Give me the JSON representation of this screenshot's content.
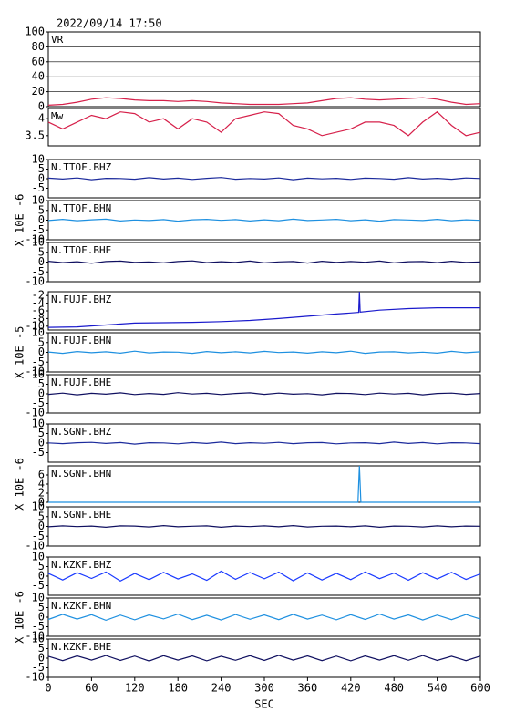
{
  "chart_data": [
    {
      "type": "line",
      "title": "2022/09/14 17:50",
      "label": "VR",
      "xlim": [
        0,
        600
      ],
      "ylim": [
        0,
        100
      ],
      "yticks": [
        0,
        20,
        40,
        60,
        80,
        100
      ],
      "grid": true,
      "x": [
        0,
        20,
        40,
        60,
        80,
        100,
        120,
        140,
        160,
        180,
        200,
        220,
        240,
        260,
        280,
        300,
        320,
        340,
        360,
        380,
        400,
        420,
        440,
        460,
        480,
        500,
        520,
        540,
        560,
        580,
        600
      ],
      "series": [
        {
          "color": "#d6204a",
          "values": [
            2,
            3,
            6,
            10,
            12,
            11,
            9,
            8,
            8,
            7,
            8,
            7,
            5,
            4,
            3,
            3,
            3,
            4,
            5,
            8,
            11,
            12,
            10,
            9,
            10,
            11,
            12,
            10,
            6,
            3,
            4
          ]
        }
      ]
    },
    {
      "type": "line",
      "label": "Mw",
      "xlim": [
        0,
        600
      ],
      "ylim": [
        3.2,
        4.3
      ],
      "yticks": [
        3.5,
        4.0
      ],
      "x": [
        0,
        20,
        40,
        60,
        80,
        100,
        120,
        140,
        160,
        180,
        200,
        220,
        240,
        260,
        280,
        300,
        320,
        340,
        360,
        380,
        400,
        420,
        440,
        460,
        480,
        500,
        520,
        540,
        560,
        580,
        600
      ],
      "series": [
        {
          "color": "#d6204a",
          "values": [
            3.9,
            3.7,
            3.9,
            4.1,
            4.0,
            4.2,
            4.15,
            3.9,
            4.0,
            3.7,
            4.0,
            3.9,
            3.6,
            4.0,
            4.1,
            4.2,
            4.15,
            3.8,
            3.7,
            3.5,
            3.6,
            3.7,
            3.9,
            3.9,
            3.8,
            3.5,
            3.9,
            4.2,
            3.8,
            3.5,
            3.6
          ]
        }
      ]
    },
    {
      "type": "line",
      "label": "N.TTOF.BHZ",
      "xlim": [
        0,
        600
      ],
      "ylim": [
        -10,
        10
      ],
      "yticks": [
        -5,
        0,
        5,
        10
      ],
      "x": [
        0,
        20,
        40,
        60,
        80,
        100,
        120,
        140,
        160,
        180,
        200,
        220,
        240,
        260,
        280,
        300,
        320,
        340,
        360,
        380,
        400,
        420,
        440,
        460,
        480,
        500,
        520,
        540,
        560,
        580,
        600
      ],
      "series": [
        {
          "color": "#1c2b9c",
          "values": [
            0.3,
            -0.2,
            0.4,
            -0.5,
            0.2,
            0.1,
            -0.3,
            0.5,
            -0.2,
            0.3,
            -0.4,
            0.2,
            0.6,
            -0.3,
            0.1,
            -0.2,
            0.4,
            -0.5,
            0.3,
            -0.1,
            0.2,
            -0.4,
            0.3,
            0.1,
            -0.3,
            0.5,
            -0.2,
            0.2,
            -0.3,
            0.4,
            0.1
          ]
        }
      ]
    },
    {
      "type": "line",
      "label": "N.TTOF.BHN",
      "ylabel": "X 10E -6",
      "xlim": [
        0,
        600
      ],
      "ylim": [
        -10,
        10
      ],
      "yticks": [
        -10,
        -5,
        0,
        5,
        10
      ],
      "x": [
        0,
        20,
        40,
        60,
        80,
        100,
        120,
        140,
        160,
        180,
        200,
        220,
        240,
        260,
        280,
        300,
        320,
        340,
        360,
        380,
        400,
        420,
        440,
        460,
        480,
        500,
        520,
        540,
        560,
        580,
        600
      ],
      "series": [
        {
          "color": "#1e90e0",
          "values": [
            -0.2,
            0.4,
            -0.3,
            0.2,
            0.5,
            -0.4,
            0.1,
            -0.2,
            0.3,
            -0.5,
            0.2,
            0.4,
            -0.1,
            0.3,
            -0.4,
            0.2,
            -0.3,
            0.5,
            -0.2,
            0.1,
            0.4,
            -0.3,
            0.2,
            -0.5,
            0.3,
            0.1,
            -0.2,
            0.4,
            -0.3,
            0.2,
            -0.1
          ]
        }
      ]
    },
    {
      "type": "line",
      "label": "N.TTOF.BHE",
      "xlim": [
        0,
        600
      ],
      "ylim": [
        -10,
        10
      ],
      "yticks": [
        -10,
        -5,
        0,
        5,
        10
      ],
      "x": [
        0,
        20,
        40,
        60,
        80,
        100,
        120,
        140,
        160,
        180,
        200,
        220,
        240,
        260,
        280,
        300,
        320,
        340,
        360,
        380,
        400,
        420,
        440,
        460,
        480,
        500,
        520,
        540,
        560,
        580,
        600
      ],
      "series": [
        {
          "color": "#101060",
          "values": [
            0.4,
            -0.3,
            0.2,
            -0.6,
            0.3,
            0.5,
            -0.2,
            0.1,
            -0.4,
            0.3,
            0.6,
            -0.3,
            0.2,
            -0.2,
            0.5,
            -0.4,
            0.1,
            0.3,
            -0.5,
            0.4,
            -0.2,
            0.3,
            -0.1,
            0.5,
            -0.4,
            0.2,
            0.3,
            -0.3,
            0.4,
            -0.2,
            0.1
          ]
        }
      ]
    },
    {
      "type": "line",
      "label": "N.FUJF.BHZ",
      "xlim": [
        0,
        600
      ],
      "ylim": [
        -11,
        -1
      ],
      "yticks": [
        -10,
        -8,
        -6,
        -4,
        -2
      ],
      "x": [
        0,
        40,
        80,
        120,
        160,
        200,
        240,
        280,
        320,
        360,
        400,
        430,
        431,
        432,
        433,
        460,
        500,
        540,
        600
      ],
      "series": [
        {
          "color": "#1a1acc",
          "values": [
            -10.3,
            -10.2,
            -9.7,
            -9.2,
            -9.1,
            -9.0,
            -8.8,
            -8.5,
            -8.0,
            -7.4,
            -6.8,
            -6.4,
            -6.4,
            -1,
            -6.3,
            -5.8,
            -5.4,
            -5.2,
            -5.2
          ]
        }
      ]
    },
    {
      "type": "line",
      "label": "N.FUJF.BHN",
      "ylabel": "X 10E -5",
      "xlim": [
        0,
        600
      ],
      "ylim": [
        -10,
        10
      ],
      "yticks": [
        -10,
        -5,
        0,
        5,
        10
      ],
      "x": [
        0,
        20,
        40,
        60,
        80,
        100,
        120,
        140,
        160,
        180,
        200,
        220,
        240,
        260,
        280,
        300,
        320,
        340,
        360,
        380,
        400,
        420,
        440,
        460,
        480,
        500,
        520,
        540,
        560,
        580,
        600
      ],
      "series": [
        {
          "color": "#1e90e0",
          "values": [
            0.2,
            -0.5,
            0.4,
            -0.2,
            0.3,
            -0.4,
            0.6,
            -0.3,
            0.2,
            0.1,
            -0.5,
            0.4,
            -0.2,
            0.3,
            -0.3,
            0.5,
            -0.1,
            0.2,
            -0.4,
            0.3,
            -0.2,
            0.6,
            -0.5,
            0.2,
            0.3,
            -0.3,
            0.1,
            -0.4,
            0.5,
            -0.2,
            0.3
          ]
        }
      ]
    },
    {
      "type": "line",
      "label": "N.FUJF.BHE",
      "xlim": [
        0,
        600
      ],
      "ylim": [
        -10,
        10
      ],
      "yticks": [
        -10,
        -5,
        0,
        5,
        10
      ],
      "x": [
        0,
        20,
        40,
        60,
        80,
        100,
        120,
        140,
        160,
        180,
        200,
        220,
        240,
        260,
        280,
        300,
        320,
        340,
        360,
        380,
        400,
        420,
        440,
        460,
        480,
        500,
        520,
        540,
        560,
        580,
        600
      ],
      "series": [
        {
          "color": "#101060",
          "values": [
            -0.3,
            0.4,
            -0.5,
            0.3,
            -0.2,
            0.5,
            -0.4,
            0.2,
            -0.3,
            0.6,
            -0.1,
            0.3,
            -0.4,
            0.2,
            0.5,
            -0.3,
            0.4,
            -0.2,
            0.1,
            -0.5,
            0.3,
            0.2,
            -0.4,
            0.4,
            -0.1,
            0.3,
            -0.5,
            0.2,
            0.4,
            -0.3,
            0.2
          ]
        }
      ]
    },
    {
      "type": "line",
      "label": "N.SGNF.BHZ",
      "xlim": [
        0,
        600
      ],
      "ylim": [
        -10,
        10
      ],
      "yticks": [
        -5,
        0,
        5,
        10
      ],
      "x": [
        0,
        20,
        40,
        60,
        80,
        100,
        120,
        140,
        160,
        180,
        200,
        220,
        240,
        260,
        280,
        300,
        320,
        340,
        360,
        380,
        400,
        420,
        440,
        460,
        480,
        500,
        520,
        540,
        560,
        580,
        600
      ],
      "series": [
        {
          "color": "#1c2b9c",
          "values": [
            0.1,
            -0.3,
            0.2,
            0.4,
            -0.2,
            0.3,
            -0.5,
            0.2,
            0.1,
            -0.4,
            0.3,
            -0.2,
            0.5,
            -0.3,
            0.2,
            -0.1,
            0.4,
            -0.3,
            0.2,
            0.3,
            -0.4,
            0.1,
            0.2,
            -0.3,
            0.5,
            -0.2,
            0.3,
            -0.4,
            0.2,
            0.1,
            -0.3
          ]
        }
      ]
    },
    {
      "type": "line",
      "label": "N.SGNF.BHN",
      "ylabel": "X 10E -6",
      "xlim": [
        0,
        600
      ],
      "ylim": [
        0,
        8
      ],
      "yticks": [
        0,
        2,
        4,
        6
      ],
      "x": [
        0,
        430,
        432,
        434,
        600
      ],
      "series": [
        {
          "color": "#1e90e0",
          "values": [
            0,
            0,
            8,
            0,
            0
          ]
        }
      ]
    },
    {
      "type": "line",
      "label": "N.SGNF.BHE",
      "xlim": [
        0,
        600
      ],
      "ylim": [
        -10,
        10
      ],
      "yticks": [
        -10,
        -5,
        0,
        5,
        10
      ],
      "x": [
        0,
        20,
        40,
        60,
        80,
        100,
        120,
        140,
        160,
        180,
        200,
        220,
        240,
        260,
        280,
        300,
        320,
        340,
        360,
        380,
        400,
        420,
        440,
        460,
        480,
        500,
        520,
        540,
        560,
        580,
        600
      ],
      "series": [
        {
          "color": "#101060",
          "values": [
            -0.2,
            0.3,
            -0.1,
            0.2,
            -0.4,
            0.3,
            0.2,
            -0.3,
            0.4,
            -0.2,
            0.1,
            0.3,
            -0.4,
            0.2,
            -0.1,
            0.3,
            -0.2,
            0.4,
            -0.3,
            0.1,
            0.2,
            -0.2,
            0.3,
            -0.4,
            0.2,
            0.1,
            -0.3,
            0.3,
            -0.2,
            0.2,
            0.1
          ]
        }
      ]
    },
    {
      "type": "line",
      "label": "N.KZKF.BHZ",
      "xlim": [
        0,
        600
      ],
      "ylim": [
        -10,
        10
      ],
      "yticks": [
        -5,
        0,
        5,
        10
      ],
      "x": [
        0,
        20,
        40,
        60,
        80,
        100,
        120,
        140,
        160,
        180,
        200,
        220,
        240,
        260,
        280,
        300,
        320,
        340,
        360,
        380,
        400,
        420,
        440,
        460,
        480,
        500,
        520,
        540,
        560,
        580,
        600
      ],
      "series": [
        {
          "color": "#1a3aff",
          "values": [
            1.5,
            -2,
            1.8,
            -1.2,
            2.2,
            -2.5,
            1.4,
            -1.8,
            2,
            -1.5,
            1.2,
            -2.2,
            2.6,
            -1.6,
            1.9,
            -1.4,
            2.1,
            -2.4,
            1.7,
            -2,
            1.5,
            -1.8,
            2.2,
            -1.3,
            1.6,
            -2.1,
            1.8,
            -1.5,
            2,
            -1.7,
            1.2
          ]
        }
      ]
    },
    {
      "type": "line",
      "label": "N.KZKF.BHN",
      "ylabel": "X 10E -6",
      "xlim": [
        0,
        600
      ],
      "ylim": [
        -10,
        10
      ],
      "yticks": [
        -10,
        -5,
        0,
        5,
        10
      ],
      "x": [
        0,
        20,
        40,
        60,
        80,
        100,
        120,
        140,
        160,
        180,
        200,
        220,
        240,
        260,
        280,
        300,
        320,
        340,
        360,
        380,
        400,
        420,
        440,
        460,
        480,
        500,
        520,
        540,
        560,
        580,
        600
      ],
      "series": [
        {
          "color": "#1e90e0",
          "values": [
            -1.2,
            1.5,
            -1,
            1.3,
            -1.6,
            1.1,
            -1.4,
            1.2,
            -0.9,
            1.6,
            -1.3,
            1,
            -1.5,
            1.4,
            -1.1,
            1.2,
            -1.3,
            1.5,
            -1,
            1.1,
            -1.4,
            1.3,
            -1.2,
            1.6,
            -1,
            1.2,
            -1.5,
            1.1,
            -1.3,
            1.4,
            -1
          ]
        }
      ]
    },
    {
      "type": "line",
      "label": "N.KZKF.BHE",
      "xlim": [
        0,
        600
      ],
      "ylim": [
        -10,
        10
      ],
      "yticks": [
        -10,
        -5,
        0,
        5,
        10
      ],
      "xticks": [
        0,
        60,
        120,
        180,
        240,
        300,
        360,
        420,
        480,
        540,
        600
      ],
      "xlabel": "SEC",
      "x": [
        0,
        20,
        40,
        60,
        80,
        100,
        120,
        140,
        160,
        180,
        200,
        220,
        240,
        260,
        280,
        300,
        320,
        340,
        360,
        380,
        400,
        420,
        440,
        460,
        480,
        500,
        520,
        540,
        560,
        580,
        600
      ],
      "series": [
        {
          "color": "#101060",
          "values": [
            1,
            -1.3,
            1.2,
            -1,
            1.4,
            -1.2,
            1.1,
            -1.5,
            1.3,
            -1,
            1.2,
            -1.4,
            1,
            -1.1,
            1.3,
            -1.2,
            1.5,
            -1,
            1.2,
            -1.3,
            1.1,
            -1.4,
            1.2,
            -1,
            1.3,
            -1.1,
            1.4,
            -1.2,
            1,
            -1.3,
            1.1
          ]
        }
      ]
    }
  ]
}
